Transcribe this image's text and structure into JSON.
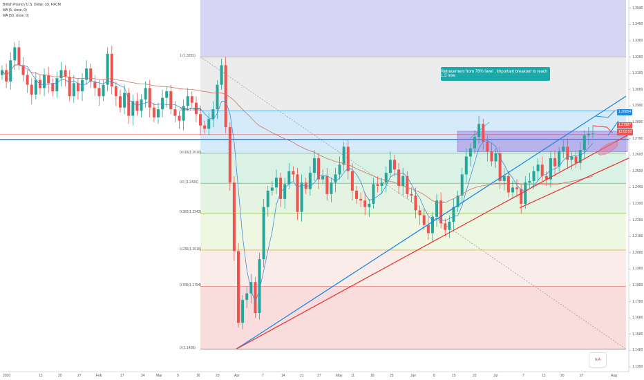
{
  "legend": {
    "title": "British Pound / U.S. Dollar, 1D, FXCM",
    "ma1": "MA (5, close, 0)",
    "ma2": "MA (50, close, 0)"
  },
  "callout": "Retracement from 78% level , Important breakout to reach 1.3 now",
  "price_tags": {
    "resistance": "1.26954",
    "last": "1.27327",
    "countdown": "12:02:52"
  },
  "badge": "N/A",
  "colors": {
    "bull": "#26a69a",
    "bear": "#ef5350",
    "ma_fast": "#3a8fd8",
    "ma_slow": "#d07060",
    "blue_line": "#1e88e5",
    "red_line": "#e53935",
    "resistance": "#1e88e5"
  },
  "chart_data": {
    "type": "candlestick",
    "title": "British Pound / U.S. Dollar, 1D, FXCM",
    "y_ticks": [
      "1.3500",
      "1.3400",
      "1.3300",
      "1.3200",
      "1.3100",
      "1.3000",
      "1.2900",
      "1.2800",
      "1.2700",
      "1.2600",
      "1.2500",
      "1.2400",
      "1.2300",
      "1.2200",
      "1.2100",
      "1.2000",
      "1.1900",
      "1.1800",
      "1.1700",
      "1.1600",
      "1.1500",
      "1.1400",
      "1.1300"
    ],
    "x_ticks": [
      "2020",
      "13",
      "20",
      "27",
      "Feb",
      "17",
      "24",
      "Mar",
      "9",
      "16",
      "23",
      "Apr",
      "7",
      "14",
      "21",
      "27",
      "May",
      "11",
      "18",
      "25",
      "Jun",
      "8",
      "15",
      "22",
      "Jul",
      "7",
      "13",
      "20",
      "27",
      "Aug"
    ],
    "fib_levels": [
      {
        "label": "1 (1.3201)",
        "value": 1.3201
      },
      {
        "label": "0.786(1.2870)",
        "value": 1.287
      },
      {
        "label": "0.618(1.2610)",
        "value": 1.261
      },
      {
        "label": "0.5 (1.2426)",
        "value": 1.2426
      },
      {
        "label": "0.382(1.2243)",
        "value": 1.2243
      },
      {
        "label": "0.236(1.2016)",
        "value": 1.2016
      },
      {
        "label": "0.786(1.1794)",
        "value": 1.1794
      },
      {
        "label": "0 (1.1409)",
        "value": 1.1409
      }
    ],
    "resistance": 1.2695,
    "last_price": 1.2733,
    "closes": [
      1.312,
      1.305,
      1.318,
      1.326,
      1.315,
      1.309,
      1.303,
      1.297,
      1.306,
      1.301,
      1.309,
      1.304,
      1.299,
      1.307,
      1.312,
      1.308,
      1.296,
      1.304,
      1.299,
      1.306,
      1.313,
      1.305,
      1.301,
      1.296,
      1.303,
      1.322,
      1.302,
      1.296,
      1.289,
      1.298,
      1.284,
      1.293,
      1.287,
      1.294,
      1.301,
      1.289,
      1.283,
      1.288,
      1.295,
      1.299,
      1.288,
      1.284,
      1.281,
      1.29,
      1.296,
      1.292,
      1.285,
      1.278,
      1.276,
      1.282,
      1.288,
      1.303,
      1.315,
      1.277,
      1.243,
      1.201,
      1.157,
      1.171,
      1.175,
      1.182,
      1.163,
      1.196,
      1.228,
      1.238,
      1.24,
      1.246,
      1.233,
      1.242,
      1.25,
      1.248,
      1.225,
      1.243,
      1.239,
      1.249,
      1.258,
      1.245,
      1.247,
      1.236,
      1.243,
      1.248,
      1.254,
      1.265,
      1.25,
      1.238,
      1.233,
      1.232,
      1.228,
      1.23,
      1.242,
      1.241,
      1.243,
      1.249,
      1.257,
      1.251,
      1.241,
      1.247,
      1.236,
      1.235,
      1.226,
      1.223,
      1.217,
      1.212,
      1.222,
      1.232,
      1.218,
      1.214,
      1.219,
      1.228,
      1.235,
      1.248,
      1.259,
      1.264,
      1.271,
      1.279,
      1.268,
      1.262,
      1.256,
      1.261,
      1.244,
      1.247,
      1.237,
      1.24,
      1.239,
      1.23,
      1.243,
      1.244,
      1.25,
      1.254,
      1.247,
      1.245,
      1.258,
      1.253,
      1.262,
      1.265,
      1.257,
      1.259,
      1.255,
      1.263,
      1.272,
      1.273,
      1.273
    ]
  }
}
